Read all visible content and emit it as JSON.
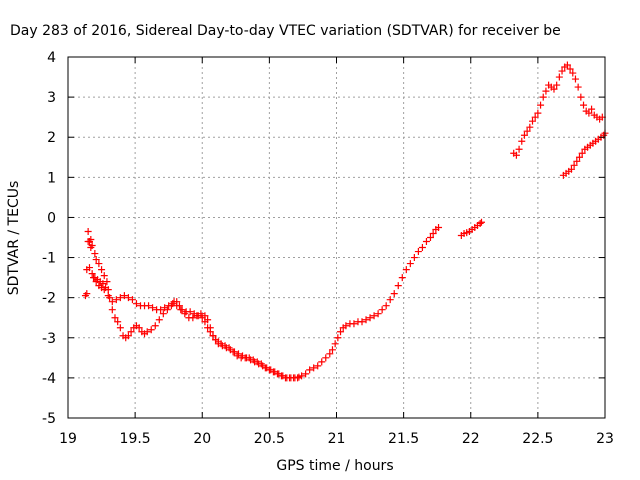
{
  "chart_data": {
    "type": "scatter",
    "title": "Day 283 of 2016, Sidereal Day-to-day VTEC variation (SDTVAR) for receiver be",
    "xlabel": "GPS time / hours",
    "ylabel": "SDTVAR / TECUs",
    "xlim": [
      19,
      23
    ],
    "ylim": [
      -5,
      4
    ],
    "xticks": [
      "19",
      "19.5",
      "20",
      "20.5",
      "21",
      "21.5",
      "22",
      "22.5",
      "23"
    ],
    "yticks": [
      "-5",
      "-4",
      "-3",
      "-2",
      "-1",
      "0",
      "1",
      "2",
      "3",
      "4"
    ],
    "grid": true,
    "marker": "+",
    "color": "#ff0000",
    "series": [
      {
        "points": [
          [
            19.15,
            -0.35
          ],
          [
            19.16,
            -0.6
          ],
          [
            19.17,
            -0.55
          ],
          [
            19.18,
            -0.7
          ],
          [
            19.2,
            -0.9
          ],
          [
            19.21,
            -1.05
          ],
          [
            19.23,
            -1.15
          ],
          [
            19.25,
            -1.3
          ],
          [
            19.27,
            -1.45
          ],
          [
            19.29,
            -1.6
          ],
          [
            19.3,
            -1.8
          ],
          [
            19.31,
            -2.0
          ],
          [
            19.33,
            -2.3
          ],
          [
            19.35,
            -2.5
          ],
          [
            19.37,
            -2.6
          ],
          [
            19.39,
            -2.75
          ],
          [
            19.41,
            -2.95
          ],
          [
            19.43,
            -3.0
          ],
          [
            19.45,
            -2.95
          ],
          [
            19.47,
            -2.85
          ],
          [
            19.49,
            -2.75
          ],
          [
            19.51,
            -2.7
          ],
          [
            19.53,
            -2.75
          ],
          [
            19.55,
            -2.85
          ],
          [
            19.57,
            -2.9
          ],
          [
            19.59,
            -2.85
          ],
          [
            19.62,
            -2.8
          ],
          [
            19.65,
            -2.7
          ],
          [
            19.68,
            -2.55
          ],
          [
            19.71,
            -2.4
          ],
          [
            19.74,
            -2.3
          ],
          [
            19.77,
            -2.2
          ],
          [
            19.79,
            -2.1
          ],
          [
            19.81,
            -2.1
          ],
          [
            19.83,
            -2.2
          ],
          [
            19.85,
            -2.3
          ],
          [
            19.88,
            -2.35
          ],
          [
            19.91,
            -2.35
          ],
          [
            19.94,
            -2.4
          ],
          [
            19.97,
            -2.45
          ],
          [
            20.0,
            -2.5
          ],
          [
            20.02,
            -2.6
          ],
          [
            20.04,
            -2.75
          ],
          [
            20.06,
            -2.85
          ],
          [
            20.08,
            -2.95
          ],
          [
            20.1,
            -3.05
          ],
          [
            20.12,
            -3.1
          ],
          [
            20.14,
            -3.15
          ],
          [
            20.17,
            -3.2
          ],
          [
            20.2,
            -3.25
          ],
          [
            20.23,
            -3.35
          ],
          [
            20.26,
            -3.45
          ],
          [
            20.29,
            -3.5
          ],
          [
            20.32,
            -3.5
          ],
          [
            20.35,
            -3.5
          ],
          [
            20.38,
            -3.55
          ],
          [
            20.41,
            -3.6
          ],
          [
            20.44,
            -3.65
          ],
          [
            20.47,
            -3.75
          ],
          [
            20.5,
            -3.8
          ],
          [
            20.53,
            -3.85
          ],
          [
            20.56,
            -3.9
          ],
          [
            20.59,
            -3.95
          ],
          [
            20.62,
            -4.0
          ],
          [
            20.65,
            -4.0
          ],
          [
            20.68,
            -4.0
          ],
          [
            20.71,
            -4.0
          ],
          [
            20.74,
            -3.95
          ],
          [
            20.77,
            -3.9
          ],
          [
            20.8,
            -3.8
          ],
          [
            20.83,
            -3.75
          ],
          [
            20.86,
            -3.7
          ],
          [
            20.89,
            -3.6
          ],
          [
            20.92,
            -3.5
          ],
          [
            20.95,
            -3.4
          ],
          [
            20.97,
            -3.3
          ],
          [
            20.99,
            -3.15
          ],
          [
            21.01,
            -3.0
          ],
          [
            21.03,
            -2.85
          ],
          [
            21.05,
            -2.75
          ],
          [
            21.07,
            -2.7
          ],
          [
            21.1,
            -2.65
          ],
          [
            21.13,
            -2.65
          ],
          [
            21.16,
            -2.6
          ],
          [
            21.19,
            -2.6
          ],
          [
            21.22,
            -2.55
          ],
          [
            21.25,
            -2.5
          ],
          [
            21.28,
            -2.45
          ],
          [
            21.31,
            -2.4
          ],
          [
            21.34,
            -2.3
          ],
          [
            21.37,
            -2.2
          ],
          [
            21.4,
            -2.05
          ],
          [
            21.43,
            -1.9
          ],
          [
            21.46,
            -1.7
          ],
          [
            21.49,
            -1.5
          ],
          [
            21.52,
            -1.3
          ],
          [
            21.55,
            -1.15
          ],
          [
            21.58,
            -1.0
          ],
          [
            21.61,
            -0.85
          ],
          [
            21.64,
            -0.75
          ],
          [
            21.67,
            -0.6
          ],
          [
            21.7,
            -0.5
          ],
          [
            21.72,
            -0.4
          ],
          [
            21.74,
            -0.3
          ],
          [
            21.76,
            -0.25
          ]
        ]
      },
      {
        "points": [
          [
            19.14,
            -1.3
          ],
          [
            19.16,
            -1.25
          ],
          [
            19.18,
            -1.4
          ],
          [
            19.2,
            -1.5
          ],
          [
            19.22,
            -1.55
          ],
          [
            19.24,
            -1.6
          ],
          [
            19.26,
            -1.65
          ],
          [
            19.28,
            -1.75
          ],
          [
            19.3,
            -1.95
          ],
          [
            19.33,
            -2.1
          ],
          [
            19.36,
            -2.05
          ],
          [
            19.39,
            -2.0
          ],
          [
            19.42,
            -1.95
          ],
          [
            19.45,
            -2.0
          ],
          [
            19.48,
            -2.05
          ],
          [
            19.51,
            -2.15
          ],
          [
            19.54,
            -2.2
          ],
          [
            19.57,
            -2.2
          ],
          [
            19.6,
            -2.2
          ],
          [
            19.63,
            -2.25
          ],
          [
            19.66,
            -2.3
          ],
          [
            19.69,
            -2.3
          ],
          [
            19.72,
            -2.25
          ],
          [
            19.75,
            -2.2
          ],
          [
            19.78,
            -2.15
          ],
          [
            19.81,
            -2.2
          ],
          [
            19.84,
            -2.3
          ],
          [
            19.87,
            -2.4
          ],
          [
            19.9,
            -2.5
          ],
          [
            19.93,
            -2.5
          ],
          [
            19.96,
            -2.45
          ],
          [
            19.99,
            -2.4
          ],
          [
            20.02,
            -2.45
          ],
          [
            20.04,
            -2.55
          ],
          [
            20.06,
            -2.75
          ],
          [
            20.08,
            -2.95
          ],
          [
            20.1,
            -3.05
          ],
          [
            20.12,
            -3.15
          ],
          [
            20.15,
            -3.2
          ],
          [
            20.18,
            -3.25
          ],
          [
            20.21,
            -3.3
          ],
          [
            20.24,
            -3.35
          ],
          [
            20.27,
            -3.4
          ],
          [
            20.3,
            -3.45
          ],
          [
            20.33,
            -3.5
          ],
          [
            20.36,
            -3.55
          ],
          [
            20.39,
            -3.6
          ],
          [
            20.42,
            -3.65
          ],
          [
            20.45,
            -3.7
          ],
          [
            20.48,
            -3.75
          ],
          [
            20.51,
            -3.8
          ],
          [
            20.54,
            -3.85
          ],
          [
            20.57,
            -3.9
          ],
          [
            20.6,
            -3.95
          ],
          [
            20.63,
            -4.0
          ],
          [
            20.66,
            -4.0
          ],
          [
            20.69,
            -4.0
          ],
          [
            20.72,
            -3.98
          ]
        ]
      },
      {
        "points": [
          [
            19.13,
            -1.95
          ],
          [
            19.14,
            -1.9
          ],
          [
            19.15,
            -0.6
          ],
          [
            19.17,
            -0.75
          ],
          [
            19.19,
            -1.5
          ],
          [
            19.21,
            -1.6
          ],
          [
            19.23,
            -1.7
          ],
          [
            19.25,
            -1.75
          ],
          [
            19.27,
            -1.8
          ]
        ]
      },
      {
        "points": [
          [
            21.93,
            -0.45
          ],
          [
            21.95,
            -0.4
          ],
          [
            21.97,
            -0.38
          ],
          [
            21.99,
            -0.35
          ],
          [
            22.01,
            -0.3
          ],
          [
            22.03,
            -0.25
          ],
          [
            22.05,
            -0.2
          ],
          [
            22.07,
            -0.15
          ],
          [
            22.08,
            -0.12
          ]
        ]
      },
      {
        "points": [
          [
            22.32,
            1.6
          ],
          [
            22.34,
            1.55
          ],
          [
            22.36,
            1.7
          ],
          [
            22.38,
            1.9
          ],
          [
            22.4,
            2.05
          ],
          [
            22.42,
            2.15
          ],
          [
            22.44,
            2.25
          ],
          [
            22.46,
            2.4
          ],
          [
            22.48,
            2.5
          ],
          [
            22.5,
            2.6
          ],
          [
            22.52,
            2.8
          ],
          [
            22.54,
            3.0
          ],
          [
            22.56,
            3.15
          ],
          [
            22.58,
            3.3
          ],
          [
            22.6,
            3.25
          ],
          [
            22.62,
            3.2
          ],
          [
            22.64,
            3.3
          ],
          [
            22.66,
            3.5
          ],
          [
            22.68,
            3.65
          ],
          [
            22.7,
            3.75
          ],
          [
            22.72,
            3.8
          ],
          [
            22.74,
            3.7
          ],
          [
            22.76,
            3.6
          ],
          [
            22.78,
            3.45
          ],
          [
            22.8,
            3.25
          ],
          [
            22.82,
            3.0
          ],
          [
            22.84,
            2.8
          ],
          [
            22.86,
            2.65
          ],
          [
            22.88,
            2.6
          ],
          [
            22.9,
            2.7
          ],
          [
            22.92,
            2.55
          ],
          [
            22.94,
            2.5
          ],
          [
            22.96,
            2.45
          ],
          [
            22.98,
            2.5
          ]
        ]
      },
      {
        "points": [
          [
            22.69,
            1.05
          ],
          [
            22.71,
            1.1
          ],
          [
            22.73,
            1.15
          ],
          [
            22.75,
            1.2
          ],
          [
            22.77,
            1.3
          ],
          [
            22.79,
            1.4
          ],
          [
            22.81,
            1.5
          ],
          [
            22.83,
            1.6
          ],
          [
            22.85,
            1.7
          ],
          [
            22.87,
            1.75
          ],
          [
            22.89,
            1.8
          ],
          [
            22.91,
            1.85
          ],
          [
            22.93,
            1.9
          ],
          [
            22.95,
            1.95
          ],
          [
            22.97,
            2.0
          ],
          [
            22.99,
            2.05
          ],
          [
            23.0,
            2.1
          ]
        ]
      }
    ]
  }
}
